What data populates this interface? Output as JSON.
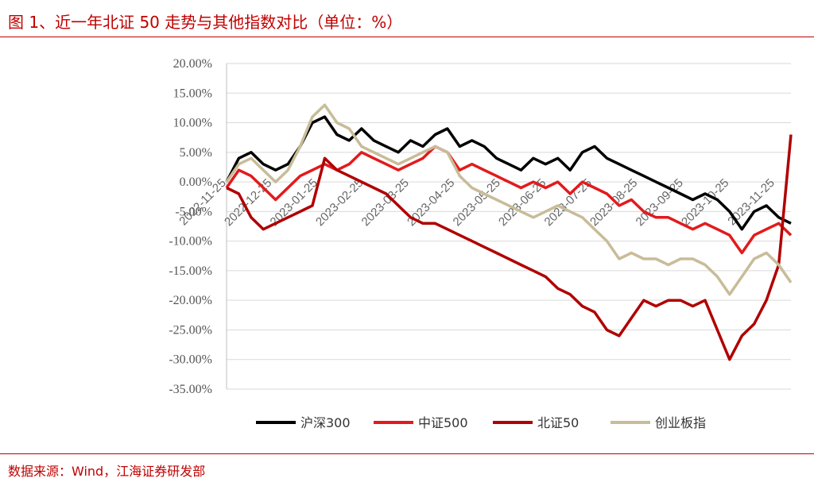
{
  "page": {
    "title": "图 1、近一年北证 50 走势与其他指数对比（单位：%）",
    "source": "数据来源：Wind，江海证券研发部"
  },
  "chart_data": {
    "type": "line",
    "ylim": [
      -35,
      20
    ],
    "y_ticks": [
      "20.00%",
      "15.00%",
      "10.00%",
      "5.00%",
      "0.00%",
      "-5.00%",
      "-10.00%",
      "-15.00%",
      "-20.00%",
      "-25.00%",
      "-30.00%",
      "-35.00%"
    ],
    "y_tick_values": [
      20,
      15,
      10,
      5,
      0,
      -5,
      -10,
      -15,
      -20,
      -25,
      -30,
      -35
    ],
    "x_ticks": [
      "2022-11-25",
      "2022-12-25",
      "2023-01-25",
      "2023-02-25",
      "2023-03-25",
      "2023-04-25",
      "2023-05-25",
      "2023-06-25",
      "2023-07-25",
      "2023-08-25",
      "2023-09-25",
      "2023-10-25",
      "2023-11-25"
    ],
    "grid": "horizontal",
    "legend_position": "bottom",
    "colors": {
      "axis": "#bfbfbf",
      "grid": "#d9d9d9",
      "title": "#c00000"
    },
    "series": [
      {
        "name": "沪深300",
        "color": "#000000",
        "values": [
          0,
          4,
          5,
          3,
          2,
          3,
          6,
          10,
          11,
          8,
          7,
          9,
          7,
          6,
          5,
          7,
          6,
          8,
          9,
          6,
          7,
          6,
          4,
          3,
          2,
          4,
          3,
          4,
          2,
          5,
          6,
          4,
          3,
          2,
          1,
          0,
          -1,
          -2,
          -3,
          -2,
          -3,
          -5,
          -8,
          -5,
          -4,
          -6,
          -7
        ]
      },
      {
        "name": "中证500",
        "color": "#e31a1c",
        "values": [
          -1,
          2,
          1,
          -1,
          -3,
          -1,
          1,
          2,
          3,
          2,
          3,
          5,
          4,
          3,
          2,
          3,
          4,
          6,
          5,
          2,
          3,
          2,
          1,
          0,
          -1,
          0,
          -1,
          0,
          -2,
          0,
          -1,
          -2,
          -4,
          -3,
          -5,
          -6,
          -6,
          -7,
          -8,
          -7,
          -8,
          -9,
          -12,
          -9,
          -8,
          -7,
          -9
        ]
      },
      {
        "name": "北证50",
        "color": "#b00000",
        "values": [
          -1,
          -2,
          -6,
          -8,
          -7,
          -6,
          -5,
          -4,
          4,
          2,
          1,
          0,
          -1,
          -2,
          -4,
          -6,
          -7,
          -7,
          -8,
          -9,
          -10,
          -11,
          -12,
          -13,
          -14,
          -15,
          -16,
          -18,
          -19,
          -21,
          -22,
          -25,
          -26,
          -23,
          -20,
          -21,
          -20,
          -20,
          -21,
          -20,
          -25,
          -30,
          -26,
          -24,
          -20,
          -14,
          8
        ]
      },
      {
        "name": "创业板指",
        "color": "#c8bc99",
        "values": [
          0,
          3,
          4,
          2,
          0,
          2,
          6,
          11,
          13,
          10,
          9,
          6,
          5,
          4,
          3,
          4,
          5,
          6,
          5,
          1,
          -1,
          -2,
          -3,
          -4,
          -5,
          -6,
          -5,
          -4,
          -5,
          -6,
          -8,
          -10,
          -13,
          -12,
          -13,
          -13,
          -14,
          -13,
          -13,
          -14,
          -16,
          -19,
          -16,
          -13,
          -12,
          -14,
          -17
        ]
      }
    ]
  }
}
